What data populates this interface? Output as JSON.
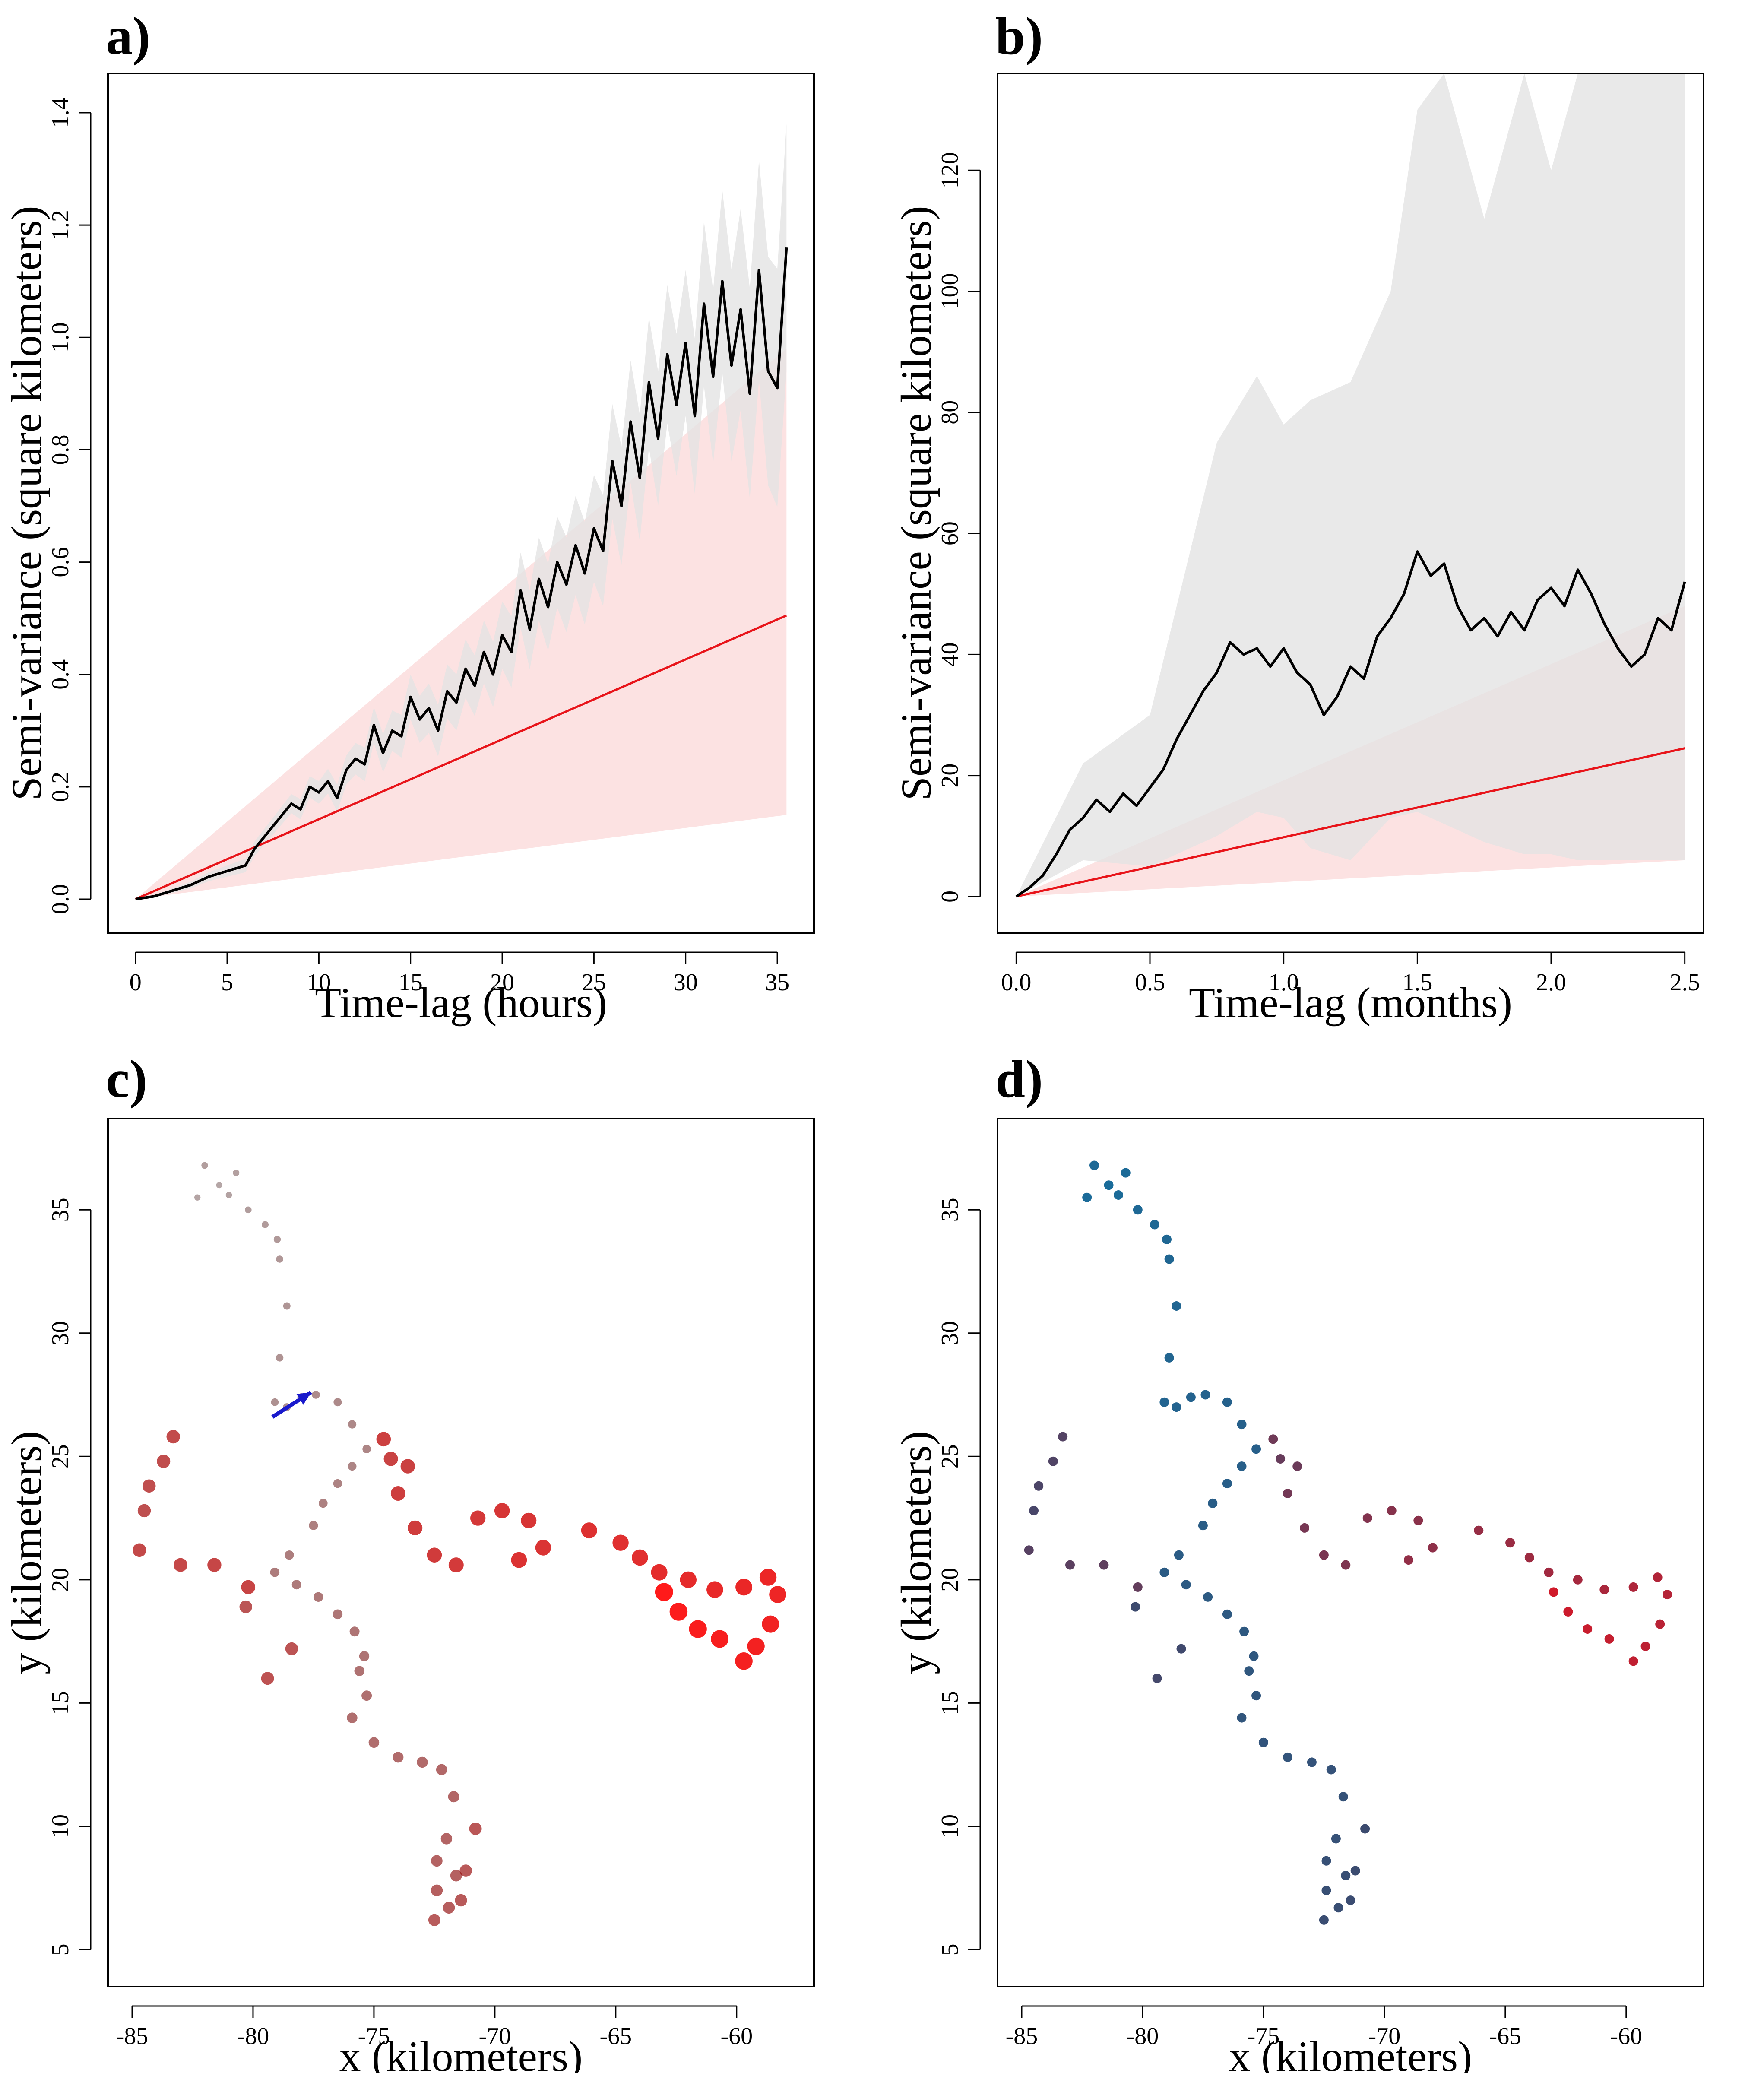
{
  "colors": {
    "curve": "#000000",
    "model_line": "#e8141a",
    "model_band": "#fbd8d8",
    "empirical_band": "#e3e3e3",
    "arrow": "#1a1acc",
    "track_c_start": "#2a0000",
    "track_c_end": "#ff1a1a",
    "track_d_start": "#1a6c9a",
    "track_d_mid": "#3d4a6e",
    "track_d_end": "#d01a2a"
  },
  "chart_data": [
    {
      "panel": "a)",
      "type": "line",
      "xlabel": "Time-lag (hours)",
      "ylabel": "Semi-variance (square kilometers)",
      "xlim": [
        -1.5,
        37
      ],
      "ylim": [
        -0.06,
        1.47
      ],
      "xticks": [
        0,
        5,
        10,
        15,
        20,
        25,
        30,
        35
      ],
      "xtick_labels": [
        "0",
        "5",
        "10",
        "15",
        "20",
        "25",
        "30",
        "35"
      ],
      "yticks": [
        0.0,
        0.2,
        0.4,
        0.6,
        0.8,
        1.0,
        1.2,
        1.4
      ],
      "ytick_labels": [
        "0.0",
        "0.2",
        "0.4",
        "0.6",
        "0.8",
        "1.0",
        "1.2",
        "1.4"
      ],
      "model_line": {
        "x": [
          0,
          35.5
        ],
        "y": [
          0,
          0.505
        ]
      },
      "model_band": {
        "x": [
          0,
          35.5
        ],
        "lower": [
          0,
          0.15
        ],
        "upper": [
          0,
          0.98
        ]
      },
      "empirical_band_halfwidth": [
        [
          0,
          0.0
        ],
        [
          10,
          0.02
        ],
        [
          20,
          0.06
        ],
        [
          30,
          0.13
        ],
        [
          35.5,
          0.22
        ]
      ],
      "semivariance": {
        "x": [
          0,
          1,
          2,
          3,
          4,
          5,
          6,
          6.5,
          7,
          7.5,
          8,
          8.5,
          9,
          9.5,
          10,
          10.5,
          11,
          11.5,
          12,
          12.5,
          13,
          13.5,
          14,
          14.5,
          15,
          15.5,
          16,
          16.5,
          17,
          17.5,
          18,
          18.5,
          19,
          19.5,
          20,
          20.5,
          21,
          21.5,
          22,
          22.5,
          23,
          23.5,
          24,
          24.5,
          25,
          25.5,
          26,
          26.5,
          27,
          27.5,
          28,
          28.5,
          29,
          29.5,
          30,
          30.5,
          31,
          31.5,
          32,
          32.5,
          33,
          33.5,
          34,
          34.5,
          35,
          35.5
        ],
        "y": [
          0,
          0.005,
          0.015,
          0.025,
          0.04,
          0.05,
          0.06,
          0.09,
          0.11,
          0.13,
          0.15,
          0.17,
          0.16,
          0.2,
          0.19,
          0.21,
          0.18,
          0.23,
          0.25,
          0.24,
          0.31,
          0.26,
          0.3,
          0.29,
          0.36,
          0.32,
          0.34,
          0.3,
          0.37,
          0.35,
          0.41,
          0.38,
          0.44,
          0.4,
          0.47,
          0.44,
          0.55,
          0.48,
          0.57,
          0.52,
          0.6,
          0.56,
          0.63,
          0.58,
          0.66,
          0.62,
          0.78,
          0.7,
          0.85,
          0.75,
          0.92,
          0.82,
          0.97,
          0.88,
          0.99,
          0.86,
          1.06,
          0.93,
          1.1,
          0.95,
          1.05,
          0.9,
          1.12,
          0.94,
          0.91,
          1.16
        ]
      }
    },
    {
      "panel": "b)",
      "type": "line",
      "xlabel": "Time-lag (months)",
      "ylabel": "Semi-variance (square kilometers)",
      "xlim": [
        -0.07,
        2.57
      ],
      "ylim": [
        -6,
        136
      ],
      "xticks": [
        0.0,
        0.5,
        1.0,
        1.5,
        2.0,
        2.5
      ],
      "xtick_labels": [
        "0.0",
        "0.5",
        "1.0",
        "1.5",
        "2.0",
        "2.5"
      ],
      "yticks": [
        0,
        20,
        40,
        60,
        80,
        100,
        120
      ],
      "ytick_labels": [
        "0",
        "20",
        "40",
        "60",
        "80",
        "100",
        "120"
      ],
      "model_line": {
        "x": [
          0,
          2.5
        ],
        "y": [
          0,
          24.5
        ]
      },
      "model_band": {
        "x": [
          0,
          2.5
        ],
        "lower": [
          0,
          6
        ],
        "upper": [
          0,
          48
        ]
      },
      "empirical_band": {
        "x": [
          0,
          0.25,
          0.5,
          0.75,
          0.9,
          1.0,
          1.1,
          1.25,
          1.4,
          1.5,
          1.6,
          1.75,
          1.9,
          2.0,
          2.1,
          2.25,
          2.5
        ],
        "lower": [
          0,
          6,
          5,
          10,
          14,
          13,
          8,
          6,
          13,
          14,
          12,
          9,
          7,
          7,
          6,
          6,
          6
        ],
        "upper": [
          0,
          22,
          30,
          75,
          86,
          78,
          82,
          85,
          100,
          130,
          136,
          112,
          136,
          120,
          136,
          136,
          136
        ]
      },
      "semivariance": {
        "x": [
          0,
          0.05,
          0.1,
          0.15,
          0.2,
          0.25,
          0.3,
          0.35,
          0.4,
          0.45,
          0.5,
          0.55,
          0.6,
          0.65,
          0.7,
          0.75,
          0.8,
          0.85,
          0.9,
          0.95,
          1.0,
          1.05,
          1.1,
          1.15,
          1.2,
          1.25,
          1.3,
          1.35,
          1.4,
          1.45,
          1.5,
          1.55,
          1.6,
          1.65,
          1.7,
          1.75,
          1.8,
          1.85,
          1.9,
          1.95,
          2.0,
          2.05,
          2.1,
          2.15,
          2.2,
          2.25,
          2.3,
          2.35,
          2.4,
          2.45,
          2.5
        ],
        "y": [
          0,
          1.5,
          3.5,
          7,
          11,
          13,
          16,
          14,
          17,
          15,
          18,
          21,
          26,
          30,
          34,
          37,
          42,
          40,
          41,
          38,
          41,
          37,
          35,
          30,
          33,
          38,
          36,
          43,
          46,
          50,
          57,
          53,
          55,
          48,
          44,
          46,
          43,
          47,
          44,
          49,
          51,
          48,
          54,
          50,
          45,
          41,
          38,
          40,
          46,
          44,
          52
        ]
      }
    },
    {
      "panel": "c)",
      "type": "scatter",
      "xlabel": "x (kilometers)",
      "ylabel": "y (kilometers)",
      "xlim": [
        -86,
        -56.8
      ],
      "ylim": [
        3.5,
        38.7
      ],
      "xticks": [
        -85,
        -80,
        -75,
        -70,
        -65,
        -60
      ],
      "xtick_labels": [
        "-85",
        "-80",
        "-75",
        "-70",
        "-65",
        "-60"
      ],
      "yticks": [
        5,
        10,
        15,
        20,
        25,
        30,
        35
      ],
      "ytick_labels": [
        "5",
        "10",
        "15",
        "20",
        "25",
        "30",
        "35"
      ],
      "arrow": {
        "from": [
          -79.2,
          26.6
        ],
        "to": [
          -77.6,
          27.6
        ]
      },
      "track": [
        [
          -81.4,
          36.0
        ],
        [
          -82.3,
          35.5
        ],
        [
          -81.0,
          35.6
        ],
        [
          -80.7,
          36.5
        ],
        [
          -82.0,
          36.8
        ],
        [
          -80.2,
          35.0
        ],
        [
          -79.5,
          34.4
        ],
        [
          -79.0,
          33.8
        ],
        [
          -78.9,
          33.0
        ],
        [
          -78.6,
          31.1
        ],
        [
          -78.9,
          29.0
        ],
        [
          -79.1,
          27.2
        ],
        [
          -78.6,
          27.0
        ],
        [
          -78.0,
          27.4
        ],
        [
          -77.4,
          27.5
        ],
        [
          -76.5,
          27.2
        ],
        [
          -75.9,
          26.3
        ],
        [
          -75.3,
          25.3
        ],
        [
          -75.9,
          24.6
        ],
        [
          -76.5,
          23.9
        ],
        [
          -77.1,
          23.1
        ],
        [
          -77.5,
          22.2
        ],
        [
          -78.5,
          21.0
        ],
        [
          -79.1,
          20.3
        ],
        [
          -78.2,
          19.8
        ],
        [
          -77.3,
          19.3
        ],
        [
          -76.5,
          18.6
        ],
        [
          -75.8,
          17.9
        ],
        [
          -75.4,
          16.9
        ],
        [
          -75.6,
          16.3
        ],
        [
          -75.3,
          15.3
        ],
        [
          -75.9,
          14.4
        ],
        [
          -75.0,
          13.4
        ],
        [
          -74.0,
          12.8
        ],
        [
          -73.0,
          12.6
        ],
        [
          -72.2,
          12.3
        ],
        [
          -71.7,
          11.2
        ],
        [
          -72.0,
          9.5
        ],
        [
          -72.4,
          8.6
        ],
        [
          -71.6,
          8.0
        ],
        [
          -72.4,
          7.4
        ],
        [
          -71.9,
          6.7
        ],
        [
          -72.5,
          6.2
        ],
        [
          -71.4,
          7.0
        ],
        [
          -71.2,
          8.2
        ],
        [
          -70.8,
          9.9
        ],
        [
          -80.3,
          18.9
        ],
        [
          -78.4,
          17.2
        ],
        [
          -79.4,
          16.0
        ],
        [
          -84.5,
          22.8
        ],
        [
          -84.3,
          23.8
        ],
        [
          -83.7,
          24.8
        ],
        [
          -83.3,
          25.8
        ],
        [
          -84.7,
          21.2
        ],
        [
          -83.0,
          20.6
        ],
        [
          -81.6,
          20.6
        ],
        [
          -80.2,
          19.7
        ],
        [
          -74.3,
          24.9
        ],
        [
          -73.6,
          24.6
        ],
        [
          -74.6,
          25.7
        ],
        [
          -74.0,
          23.5
        ],
        [
          -73.3,
          22.1
        ],
        [
          -72.5,
          21.0
        ],
        [
          -71.6,
          20.6
        ],
        [
          -70.7,
          22.5
        ],
        [
          -69.7,
          22.8
        ],
        [
          -68.6,
          22.4
        ],
        [
          -68.0,
          21.3
        ],
        [
          -69.0,
          20.8
        ],
        [
          -66.1,
          22.0
        ],
        [
          -64.8,
          21.5
        ],
        [
          -64.0,
          20.9
        ],
        [
          -63.2,
          20.3
        ],
        [
          -62.0,
          20.0
        ],
        [
          -60.9,
          19.6
        ],
        [
          -59.7,
          19.7
        ],
        [
          -58.7,
          20.1
        ],
        [
          -58.3,
          19.4
        ],
        [
          -58.6,
          18.2
        ],
        [
          -59.2,
          17.3
        ],
        [
          -59.7,
          16.7
        ],
        [
          -60.7,
          17.6
        ],
        [
          -61.6,
          18.0
        ],
        [
          -62.4,
          18.7
        ],
        [
          -63.0,
          19.5
        ]
      ]
    },
    {
      "panel": "d)",
      "type": "scatter",
      "xlabel": "x (kilometers)",
      "ylabel": "y (kilometers)",
      "xlim": [
        -86,
        -56.8
      ],
      "ylim": [
        3.5,
        38.7
      ],
      "xticks": [
        -85,
        -80,
        -75,
        -70,
        -65,
        -60
      ],
      "xtick_labels": [
        "-85",
        "-80",
        "-75",
        "-70",
        "-65",
        "-60"
      ],
      "yticks": [
        5,
        10,
        15,
        20,
        25,
        30,
        35
      ],
      "ytick_labels": [
        "5",
        "10",
        "15",
        "20",
        "25",
        "30",
        "35"
      ],
      "track": [
        [
          -81.4,
          36.0
        ],
        [
          -82.3,
          35.5
        ],
        [
          -81.0,
          35.6
        ],
        [
          -80.7,
          36.5
        ],
        [
          -82.0,
          36.8
        ],
        [
          -80.2,
          35.0
        ],
        [
          -79.5,
          34.4
        ],
        [
          -79.0,
          33.8
        ],
        [
          -78.9,
          33.0
        ],
        [
          -78.6,
          31.1
        ],
        [
          -78.9,
          29.0
        ],
        [
          -79.1,
          27.2
        ],
        [
          -78.6,
          27.0
        ],
        [
          -78.0,
          27.4
        ],
        [
          -77.4,
          27.5
        ],
        [
          -76.5,
          27.2
        ],
        [
          -75.9,
          26.3
        ],
        [
          -75.3,
          25.3
        ],
        [
          -75.9,
          24.6
        ],
        [
          -76.5,
          23.9
        ],
        [
          -77.1,
          23.1
        ],
        [
          -77.5,
          22.2
        ],
        [
          -78.5,
          21.0
        ],
        [
          -79.1,
          20.3
        ],
        [
          -78.2,
          19.8
        ],
        [
          -77.3,
          19.3
        ],
        [
          -76.5,
          18.6
        ],
        [
          -75.8,
          17.9
        ],
        [
          -75.4,
          16.9
        ],
        [
          -75.6,
          16.3
        ],
        [
          -75.3,
          15.3
        ],
        [
          -75.9,
          14.4
        ],
        [
          -75.0,
          13.4
        ],
        [
          -74.0,
          12.8
        ],
        [
          -73.0,
          12.6
        ],
        [
          -72.2,
          12.3
        ],
        [
          -71.7,
          11.2
        ],
        [
          -72.0,
          9.5
        ],
        [
          -72.4,
          8.6
        ],
        [
          -71.6,
          8.0
        ],
        [
          -72.4,
          7.4
        ],
        [
          -71.9,
          6.7
        ],
        [
          -72.5,
          6.2
        ],
        [
          -71.4,
          7.0
        ],
        [
          -71.2,
          8.2
        ],
        [
          -70.8,
          9.9
        ],
        [
          -80.3,
          18.9
        ],
        [
          -78.4,
          17.2
        ],
        [
          -79.4,
          16.0
        ],
        [
          -84.5,
          22.8
        ],
        [
          -84.3,
          23.8
        ],
        [
          -83.7,
          24.8
        ],
        [
          -83.3,
          25.8
        ],
        [
          -84.7,
          21.2
        ],
        [
          -83.0,
          20.6
        ],
        [
          -81.6,
          20.6
        ],
        [
          -80.2,
          19.7
        ],
        [
          -74.3,
          24.9
        ],
        [
          -73.6,
          24.6
        ],
        [
          -74.6,
          25.7
        ],
        [
          -74.0,
          23.5
        ],
        [
          -73.3,
          22.1
        ],
        [
          -72.5,
          21.0
        ],
        [
          -71.6,
          20.6
        ],
        [
          -70.7,
          22.5
        ],
        [
          -69.7,
          22.8
        ],
        [
          -68.6,
          22.4
        ],
        [
          -68.0,
          21.3
        ],
        [
          -69.0,
          20.8
        ],
        [
          -66.1,
          22.0
        ],
        [
          -64.8,
          21.5
        ],
        [
          -64.0,
          20.9
        ],
        [
          -63.2,
          20.3
        ],
        [
          -62.0,
          20.0
        ],
        [
          -60.9,
          19.6
        ],
        [
          -59.7,
          19.7
        ],
        [
          -58.7,
          20.1
        ],
        [
          -58.3,
          19.4
        ],
        [
          -58.6,
          18.2
        ],
        [
          -59.2,
          17.3
        ],
        [
          -59.7,
          16.7
        ],
        [
          -60.7,
          17.6
        ],
        [
          -61.6,
          18.0
        ],
        [
          -62.4,
          18.7
        ],
        [
          -63.0,
          19.5
        ]
      ]
    }
  ]
}
